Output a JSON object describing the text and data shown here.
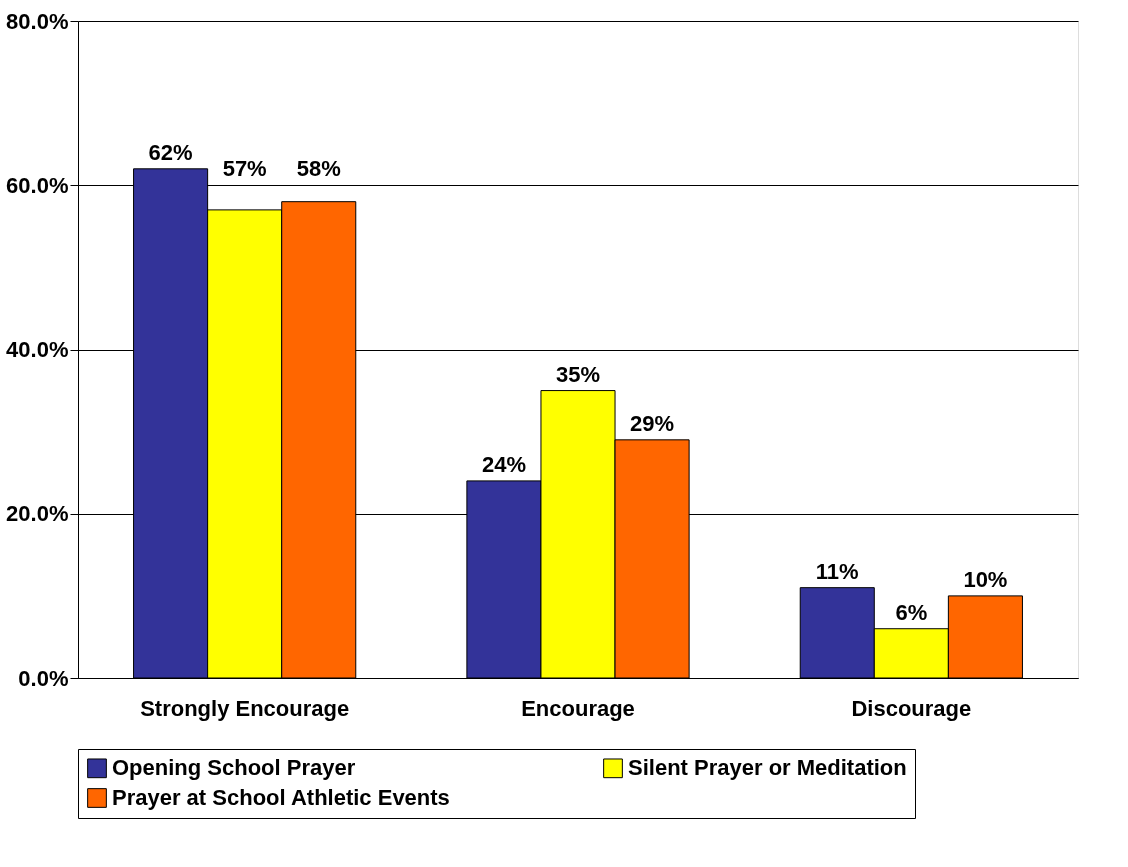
{
  "chart_data": {
    "type": "bar",
    "categories": [
      "Strongly Encourage",
      "Encourage",
      "Discourage"
    ],
    "series": [
      {
        "name": "Opening School Prayer",
        "color": "#333399",
        "values": [
          62,
          24,
          11
        ],
        "value_labels": [
          "62%",
          "24%",
          "11%"
        ]
      },
      {
        "name": "Silent Prayer or Meditation",
        "color": "#ffff00",
        "values": [
          57,
          35,
          6
        ],
        "value_labels": [
          "57%",
          "35%",
          "6%"
        ]
      },
      {
        "name": "Prayer at School Athletic Events",
        "color": "#ff6600",
        "values": [
          58,
          29,
          10
        ],
        "value_labels": [
          "58%",
          "29%",
          "10%"
        ]
      }
    ],
    "ylim": [
      0,
      80
    ],
    "yticks": [
      {
        "value": 0,
        "label": "0.0%"
      },
      {
        "value": 20,
        "label": "20.0%"
      },
      {
        "value": 40,
        "label": "40.0%"
      },
      {
        "value": 60,
        "label": "60.0%"
      },
      {
        "value": 80,
        "label": "80.0%"
      }
    ],
    "grid": "y",
    "legend": "bottom"
  }
}
